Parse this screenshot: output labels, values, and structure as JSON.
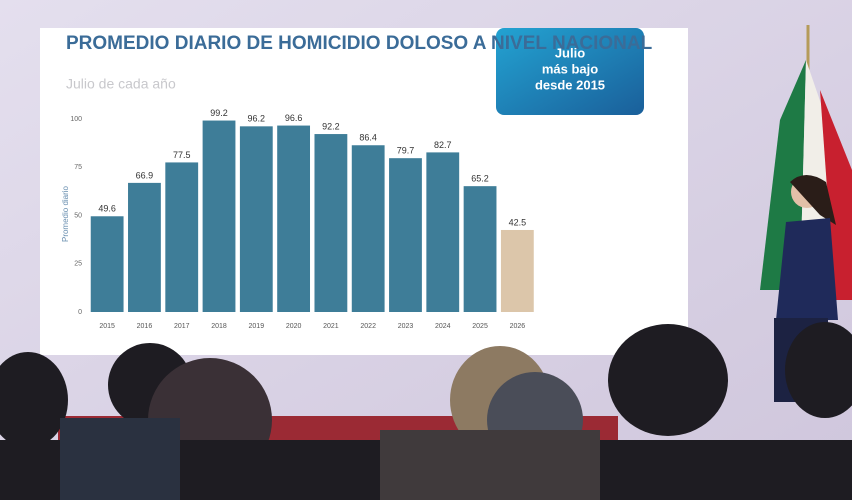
{
  "chart_data": {
    "type": "bar",
    "title": "PROMEDIO DIARIO DE HOMICIDIO DOLOSO A NIVEL NACIONAL",
    "subtitle": "Julio de cada año",
    "annotations": [
      "Julio",
      "más bajo",
      "desde 2015"
    ],
    "y_label": "Promedio diario",
    "categories": [
      "2015",
      "2016",
      "2017",
      "2018",
      "2019",
      "2020",
      "2021",
      "2022",
      "2023",
      "2024",
      "2025",
      "2026"
    ],
    "values": [
      49.6,
      66.9,
      77.5,
      99.2,
      96.2,
      96.6,
      92.2,
      86.4,
      79.7,
      82.7,
      65.2,
      42.5
    ],
    "colors": [
      "#3e7d98",
      "#3e7d98",
      "#3e7d98",
      "#3e7d98",
      "#3e7d98",
      "#3e7d98",
      "#3e7d98",
      "#3e7d98",
      "#3e7d98",
      "#3e7d98",
      "#3e7d98",
      "#dcc6aa"
    ],
    "ylim": [
      0,
      100
    ],
    "yticks": [
      0,
      25,
      50,
      75,
      100
    ],
    "grid": false
  }
}
